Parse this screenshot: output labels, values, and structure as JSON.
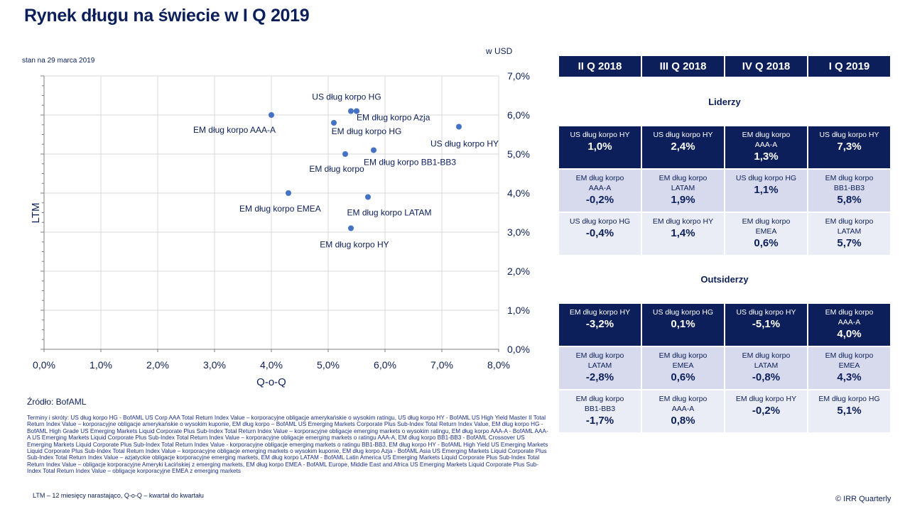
{
  "title": "Rynek długu na świecie w I Q 2019",
  "asof": "stan na 29 marca 2019",
  "unit": "w USD",
  "chart_data": {
    "type": "scatter",
    "xlabel": "Q-o-Q",
    "ylabel": "LTM",
    "xlim": [
      0,
      8
    ],
    "ylim": [
      0,
      7
    ],
    "x_ticks": [
      "0,0%",
      "1,0%",
      "2,0%",
      "3,0%",
      "4,0%",
      "5,0%",
      "6,0%",
      "7,0%",
      "8,0%"
    ],
    "y_ticks": [
      "0,0%",
      "1,0%",
      "2,0%",
      "3,0%",
      "4,0%",
      "5,0%",
      "6,0%",
      "7,0%"
    ],
    "grid": true,
    "color": "#4472c4",
    "points": [
      {
        "label": "US dług korpo HG",
        "x": 5.4,
        "y": 6.1
      },
      {
        "label": "",
        "x": 5.5,
        "y": 6.1
      },
      {
        "label": "EM dług korpo Azja",
        "x": 5.5,
        "y": 6.1
      },
      {
        "label": "EM dług korpo AAA-A",
        "x": 4.0,
        "y": 6.0
      },
      {
        "label": "EM dług korpo HG",
        "x": 5.1,
        "y": 5.8
      },
      {
        "label": "US dług korpo HY",
        "x": 7.3,
        "y": 5.7
      },
      {
        "label": "EM dług korpo BB1-BB3",
        "x": 5.8,
        "y": 5.1
      },
      {
        "label": "EM dług korpo",
        "x": 5.3,
        "y": 5.0
      },
      {
        "label": "EM dług korpo EMEA",
        "x": 4.3,
        "y": 4.0
      },
      {
        "label": "EM dług korpo LATAM",
        "x": 5.7,
        "y": 3.9
      },
      {
        "label": "EM dług korpo HY",
        "x": 5.4,
        "y": 3.1
      }
    ]
  },
  "table": {
    "quarters": [
      "II Q 2018",
      "III Q 2018",
      "IV Q 2018",
      "I Q 2019"
    ],
    "leaders_title": "Liderzy",
    "leaders": [
      [
        {
          "name": "US dług korpo HY",
          "value": "1,0%"
        },
        {
          "name": "US dług korpo HY",
          "value": "2,4%"
        },
        {
          "name": "EM dług korpo AAA-A",
          "value": "1,3%"
        },
        {
          "name": "US dług korpo HY",
          "value": "7,3%"
        }
      ],
      [
        {
          "name": "EM dług korpo AAA-A",
          "value": "-0,2%"
        },
        {
          "name": "EM dług korpo LATAM",
          "value": "1,9%"
        },
        {
          "name": "US dług korpo HG",
          "value": "1,1%"
        },
        {
          "name": "EM dług korpo BB1-BB3",
          "value": "5,8%"
        }
      ],
      [
        {
          "name": "US dług korpo HG",
          "value": "-0,4%"
        },
        {
          "name": "EM dług korpo HY",
          "value": "1,4%"
        },
        {
          "name": "EM dług korpo EMEA",
          "value": "0,6%"
        },
        {
          "name": "EM dług korpo LATAM",
          "value": "5,7%"
        }
      ]
    ],
    "outsiders_title": "Outsiderzy",
    "outsiders": [
      [
        {
          "name": "EM dług korpo HY",
          "value": "-3,2%"
        },
        {
          "name": "US dług korpo HG",
          "value": "0,1%"
        },
        {
          "name": "US dług korpo HY",
          "value": "-5,1%"
        },
        {
          "name": "EM dług korpo AAA-A",
          "value": "4,0%"
        }
      ],
      [
        {
          "name": "EM dług korpo LATAM",
          "value": "-2,8%"
        },
        {
          "name": "EM dług korpo EMEA",
          "value": "0,6%"
        },
        {
          "name": "EM dług korpo LATAM",
          "value": "-0,8%"
        },
        {
          "name": "EM dług korpo EMEA",
          "value": "4,3%"
        }
      ],
      [
        {
          "name": "EM dług korpo BB1-BB3",
          "value": "-1,7%"
        },
        {
          "name": "EM dług korpo AAA-A",
          "value": "0,8%"
        },
        {
          "name": "EM dług korpo HY",
          "value": "-0,2%"
        },
        {
          "name": "EM dług korpo HG",
          "value": "5,1%"
        }
      ]
    ]
  },
  "source": "Źródło: BofAML",
  "terms": "Terminy i skróty: US dług korpo HG - BofAML US Corp AAA Total Return Index Value – korporacyjne obligacje amerykańskie o wysokim ratingu, US dług korpo HY - BofAML US High Yield Master II Total Return Index Value – korporacyjne obligacje amerykańskie o wysokim kuponie, EM dług korpo – BofAML US Emerging Markets Corporate Plus Sub-Index Total Return Index Value, EM dług korpo HG - BofAML High Grade US Emerging Markets Liquid Corporate Plus Sub-Index Total Return Index Value – korporacyjne obligacje emerging markets o wysokim ratingu, EM dług korpo AAA-A - BofAML AAA-A US Emerging Markets Liquid Corporate Plus Sub-Index Total Return Index Value – korporacyjne obligacje emerging markets o ratingu AAA-A, EM dług korpo BB1-BB3 - BofAML Crossover US Emerging Markets Liquid Corporate Plus Sub-Index Total Return Index Value - korporacyjne obligacje emerging markets o ratingu BB1-BB3, EM dług korpo HY - BofAML High Yield US Emerging Markets Liquid Corporate Plus Sub-Index Total Return Index Value – korporacyjne obligacje emerging markets o wysokim kuponie, EM dług korpo Azja - BofAML Asia US Emerging Markets Liquid Corporate Plus Sub-Index Total Return Index Value – azjatyckie obligacje korporacyjne emerging markets, EM dług korpo LATAM - BofAML Latin America US Emerging Markets Liquid Corporate Plus Sub-Index Total Return Index Value – obligacje korporacyjne Ameryki Łacińskiej z emerging markets, EM dług korpo EMEA - BofAML Europe, Middle East and Africa US Emerging Markets Liquid Corporate Plus Sub-Index Total Return Index Value – obligacje korporacyjne EMEA z emerging markets",
  "ltm_note": "LTM – 12 miesięcy narastająco, Q-o-Q – kwartał do kwartału",
  "copyright": "© IRR Quarterly"
}
